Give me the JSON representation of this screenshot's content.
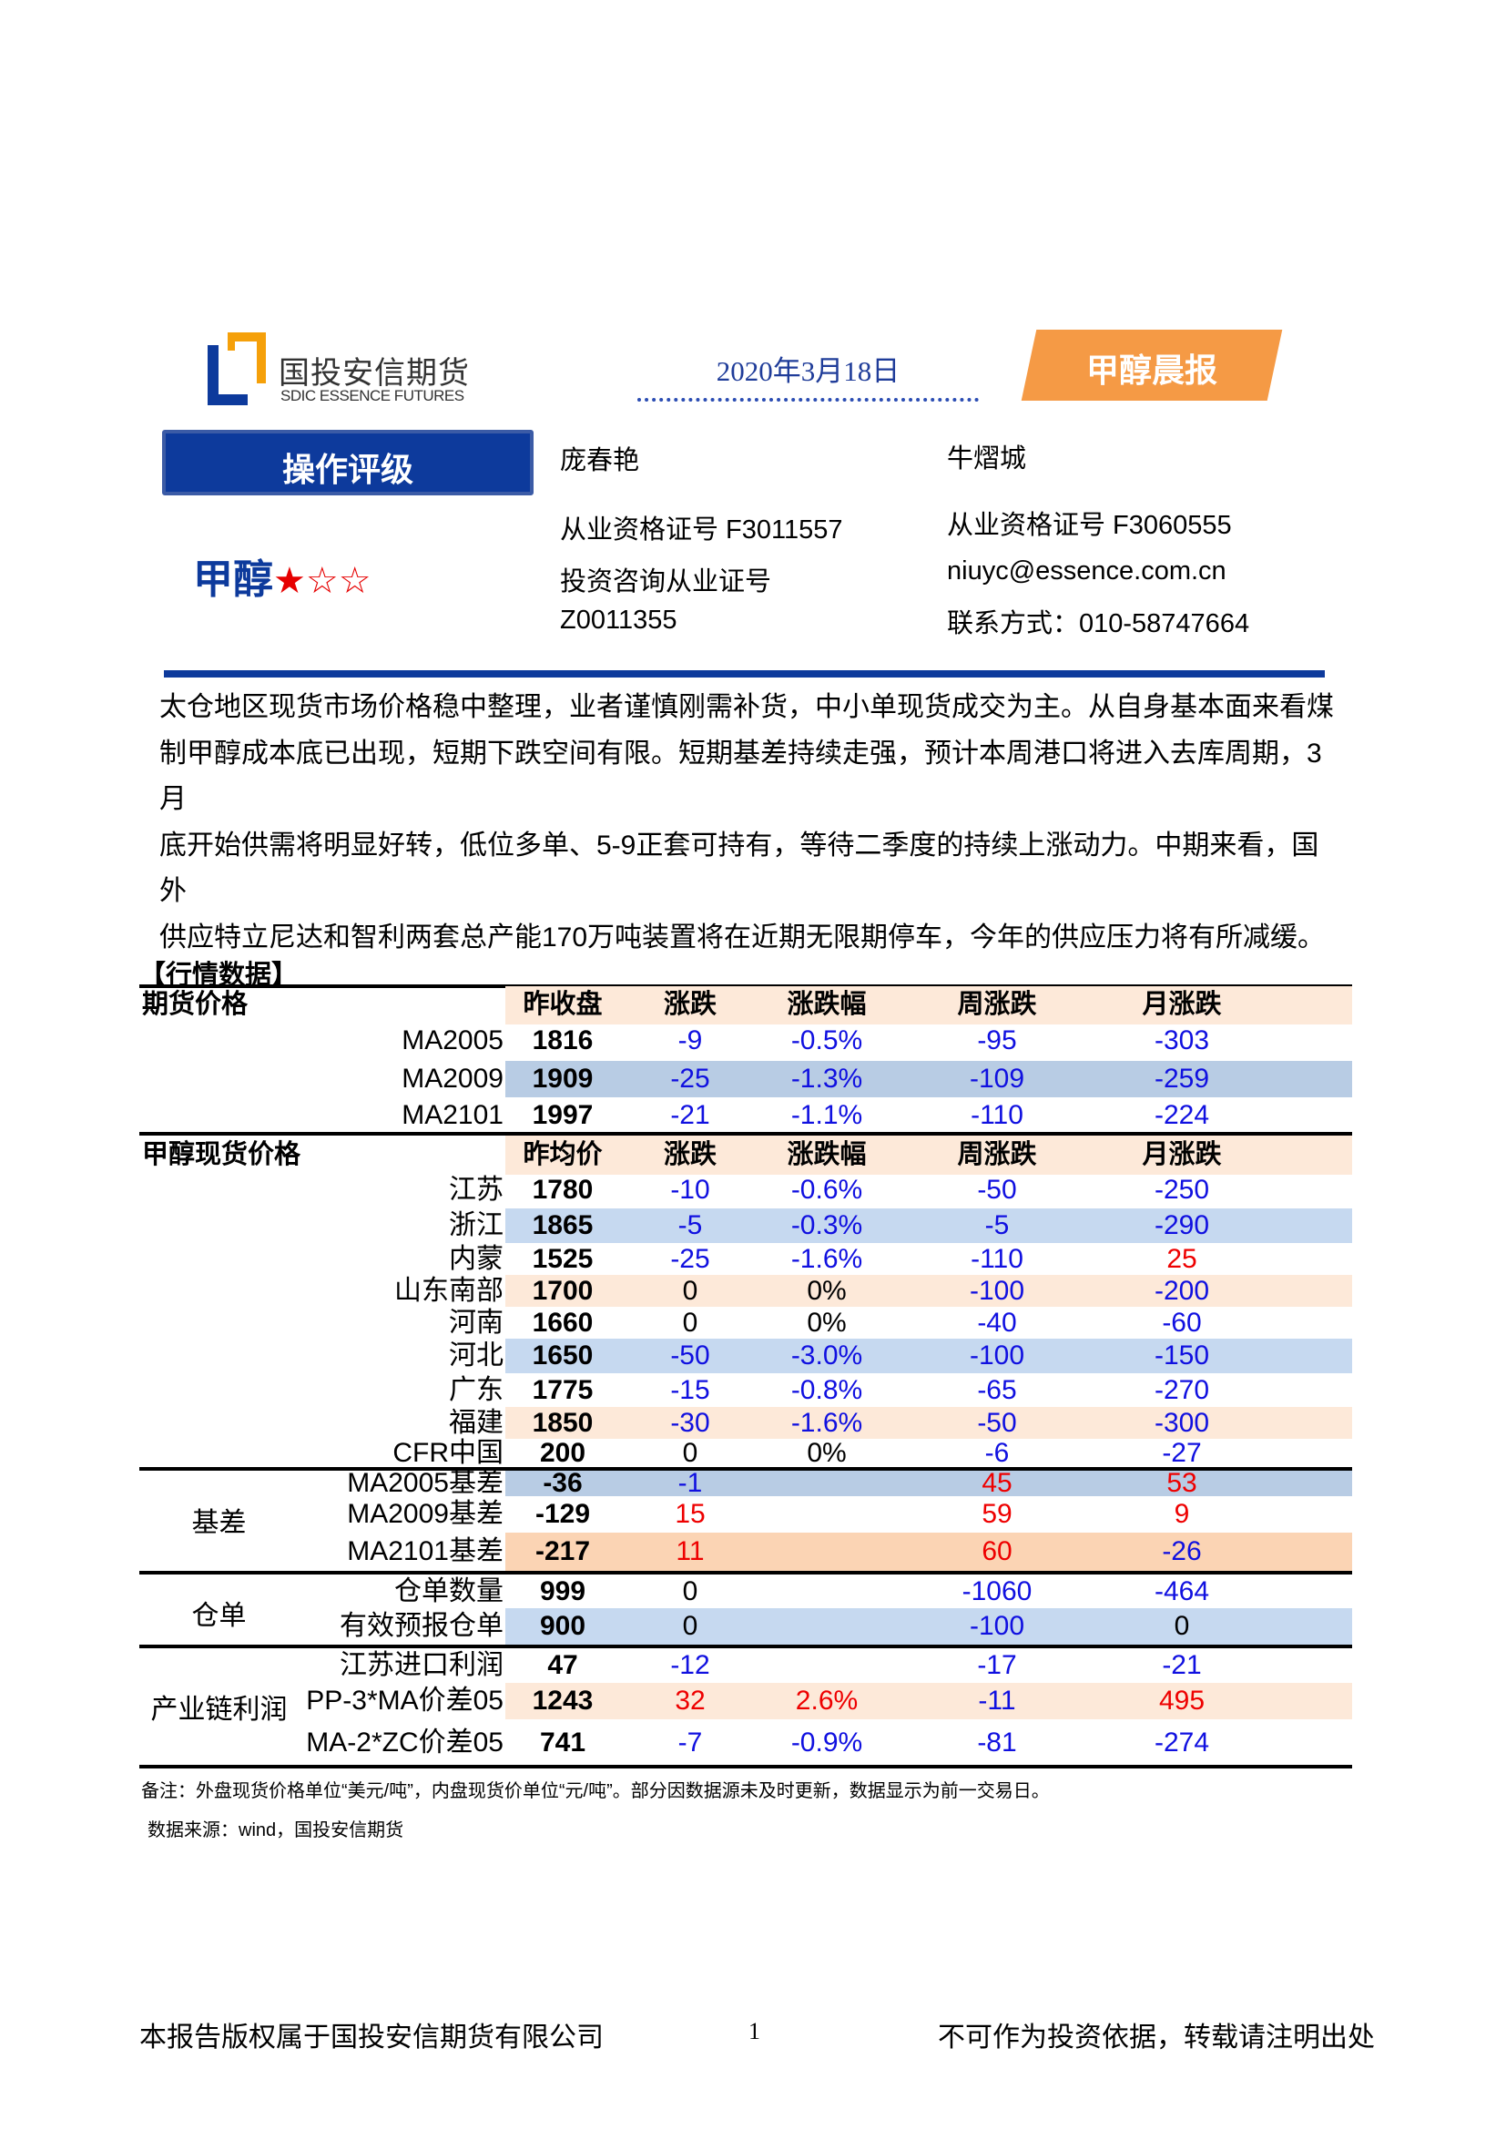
{
  "header": {
    "logo_cn": "国投安信期货",
    "logo_en": "SDIC ESSENCE FUTURES",
    "date": "2020年3月18日",
    "badge": "甲醇晨报"
  },
  "rating": {
    "label": "操作评级",
    "product": "甲醇",
    "stars_filled": 1,
    "stars_total": 3,
    "star_filled_glyph": "★",
    "star_empty_glyph": "☆"
  },
  "authors": [
    {
      "name": "庞春艳",
      "cert": "从业资格证号  F3011557",
      "consult": "投资咨询从业证号",
      "consult_no": "Z0011355"
    },
    {
      "name": "牛熠城",
      "cert": "从业资格证号  F3060555",
      "email": "niuyc@essence.com.cn",
      "phone": "联系方式：010-58747664"
    }
  ],
  "summary_lines": [
    "太仓地区现货市场价格稳中整理，业者谨慎刚需补货，中小单现货成交为主。从自身基本面来看煤",
    "制甲醇成本底已出现，短期下跌空间有限。短期基差持续走强，预计本周港口将进入去库周期，3月",
    "底开始供需将明显好转，低位多单、5-9正套可持有，等待二季度的持续上涨动力。中期来看，国外",
    "供应特立尼达和智利两套总产能170万吨装置将在近期无限期停车，今年的供应压力将有所减缓。"
  ],
  "table": {
    "title": "【行情数据】",
    "colors": {
      "negative": "#1010e0",
      "positive": "#ee0000",
      "zero": "#000000",
      "peach": "#fde9d9",
      "light_blue": "#c6d9f0",
      "mid_blue": "#b8cce4",
      "dark_peach": "#fbd4b4"
    },
    "sections": [
      {
        "title": "期货价格",
        "headers": [
          "昨收盘",
          "涨跌",
          "涨跌幅",
          "周涨跌",
          "月涨跌"
        ],
        "rows": [
          {
            "label": "MA2005",
            "values": [
              "1816",
              "-9",
              "-0.5%",
              "-95",
              "-303"
            ]
          },
          {
            "label": "MA2009",
            "values": [
              "1909",
              "-25",
              "-1.3%",
              "-109",
              "-259"
            ]
          },
          {
            "label": "MA2101",
            "values": [
              "1997",
              "-21",
              "-1.1%",
              "-110",
              "-224"
            ]
          }
        ]
      },
      {
        "title": "甲醇现货价格",
        "headers": [
          "昨均价",
          "涨跌",
          "涨跌幅",
          "周涨跌",
          "月涨跌"
        ],
        "rows": [
          {
            "label": "江苏",
            "values": [
              "1780",
              "-10",
              "-0.6%",
              "-50",
              "-250"
            ]
          },
          {
            "label": "浙江",
            "values": [
              "1865",
              "-5",
              "-0.3%",
              "-5",
              "-290"
            ]
          },
          {
            "label": "内蒙",
            "values": [
              "1525",
              "-25",
              "-1.6%",
              "-110",
              "25"
            ]
          },
          {
            "label": "山东南部",
            "values": [
              "1700",
              "0",
              "0%",
              "-100",
              "-200"
            ]
          },
          {
            "label": "河南",
            "values": [
              "1660",
              "0",
              "0%",
              "-40",
              "-60"
            ]
          },
          {
            "label": "河北",
            "values": [
              "1650",
              "-50",
              "-3.0%",
              "-100",
              "-150"
            ]
          },
          {
            "label": "广东",
            "values": [
              "1775",
              "-15",
              "-0.8%",
              "-65",
              "-270"
            ]
          },
          {
            "label": "福建",
            "values": [
              "1850",
              "-30",
              "-1.6%",
              "-50",
              "-300"
            ]
          },
          {
            "label": "CFR中国",
            "values": [
              "200",
              "0",
              "0%",
              "-6",
              "-27"
            ]
          }
        ]
      },
      {
        "group": "基差",
        "rows": [
          {
            "label": "MA2005基差",
            "values": [
              "-36",
              "-1",
              "",
              "45",
              "53"
            ]
          },
          {
            "label": "MA2009基差",
            "values": [
              "-129",
              "15",
              "",
              "59",
              "9"
            ]
          },
          {
            "label": "MA2101基差",
            "values": [
              "-217",
              "11",
              "",
              "60",
              "-26"
            ]
          }
        ]
      },
      {
        "group": "仓单",
        "rows": [
          {
            "label": "仓单数量",
            "values": [
              "999",
              "0",
              "",
              "-1060",
              "-464"
            ]
          },
          {
            "label": "有效预报仓单",
            "values": [
              "900",
              "0",
              "",
              "-100",
              "0"
            ]
          }
        ]
      },
      {
        "group": "产业链利润",
        "rows": [
          {
            "label": "江苏进口利润",
            "values": [
              "47",
              "-12",
              "",
              "-17",
              "-21"
            ]
          },
          {
            "label": "PP-3*MA价差05",
            "values": [
              "1243",
              "32",
              "2.6%",
              "-11",
              "495"
            ]
          },
          {
            "label": "MA-2*ZC价差05",
            "values": [
              "741",
              "-7",
              "-0.9%",
              "-81",
              "-274"
            ]
          }
        ]
      }
    ],
    "note": "备注：外盘现货价格单位“美元/吨”，内盘现货价单位“元/吨”。部分因数据源未及时更新，数据显示为前一交易日。",
    "source": "数据来源：wind，国投安信期货"
  },
  "footer": {
    "left": "本报告版权属于国投安信期货有限公司",
    "page": "1",
    "right": "不可作为投资依据，转载请注明出处"
  }
}
